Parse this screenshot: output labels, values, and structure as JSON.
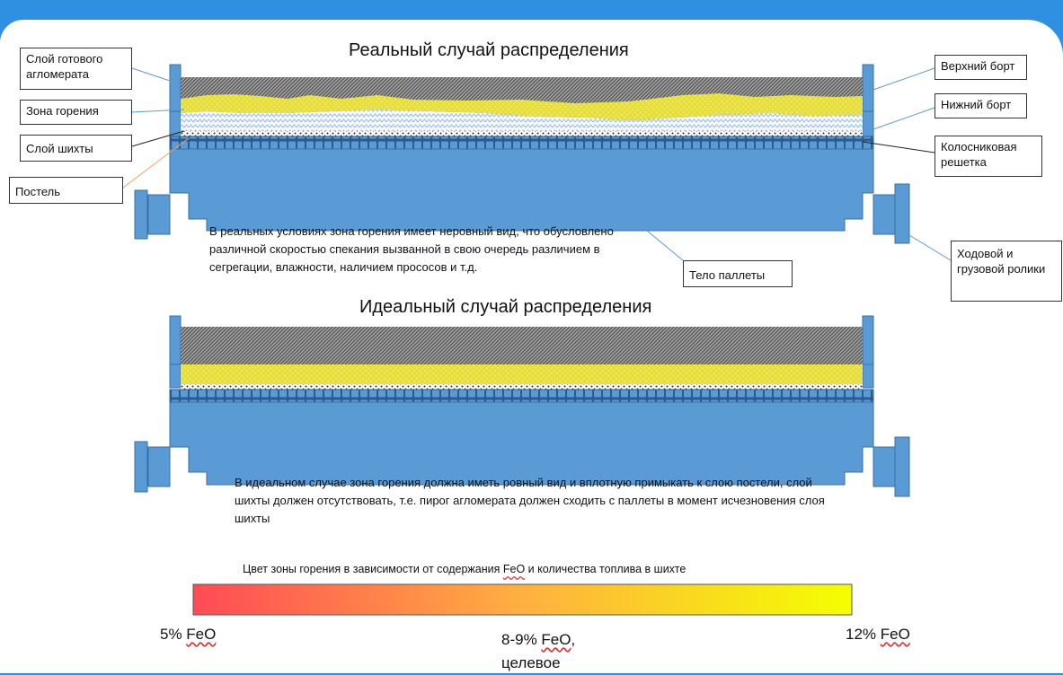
{
  "diagram": {
    "title_real": "Реальный случай распределения",
    "title_ideal": "Идеальный случай распределения",
    "labels": {
      "finished_layer": "Слой готового агломерата",
      "burning_zone": "Зона горения",
      "charge_layer": "Слой шихты",
      "bed": "Постель",
      "upper_side": "Верхний борт",
      "lower_side": "Нижний борт",
      "grate": "Колосниковая решетка",
      "rollers": "Ходовой и грузовой ролики",
      "pallet_body": "Тело паллеты"
    },
    "text_real": "В реальных условиях зона горения имеет неровный вид, что обусловлено различной скоростью спекания вызванной в свою очередь различием в сегрегации, влажности, наличием прососов и т.д.",
    "text_ideal": "В идеальном случае зона горения должна иметь ровный вид и вплотную примыкать к слою постели, слой шихты должен отсутствовать,  т.е. пирог агломерата должен сходить с паллеты в момент исчезновения слоя шихты",
    "scale": {
      "caption_prefix": "Цвет зоны горения в зависимости от содержания ",
      "caption_feo": "FeO",
      "caption_suffix": " и количества топлива в шихте",
      "left_value": "5% ",
      "mid_value": "8-9% ",
      "mid_comma": ",",
      "mid_note": "целевое",
      "right_value": "12% ",
      "feo": "FeO"
    },
    "colors": {
      "background": "#2f8fe0",
      "pallet": "#5b9bd5",
      "pallet_stroke": "#3a6fa6",
      "sinter": "#6e6e6e",
      "burn_zone": "#e8e040",
      "charge": "#cfe3f4",
      "gradient_start": "#ff4a55",
      "gradient_mid": "#ffb040",
      "gradient_end": "#f4ff00"
    }
  }
}
